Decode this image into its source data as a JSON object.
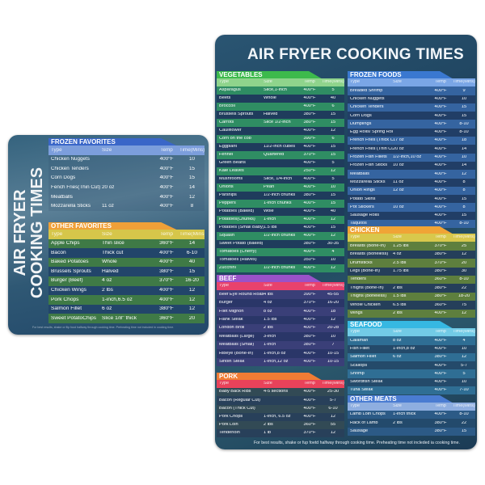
{
  "big": {
    "title": "AIR FRYER COOKING TIMES",
    "footer": "For best results, shake or fup foetd halfway through cooking time. Preheating time not incleded ia cooking time.",
    "sections": [
      {
        "key": "veg",
        "title": "VEGETABLES",
        "colors": {
          "head": "#3dba4c",
          "hrow": "#8fd48c",
          "a": "#2f8d63",
          "b": "#1f3c5c"
        },
        "columns": [
          "Type",
          "Size",
          "Temp",
          "Time(Mins)"
        ],
        "rows": [
          [
            "Asparagus",
            "Slice,1-inch",
            "400°F",
            "5"
          ],
          [
            "Beets",
            "Whole",
            "400°F",
            "40"
          ],
          [
            "Broccoli",
            "",
            "400°F",
            "6"
          ],
          [
            "Brussels Sprouts",
            "Halved",
            "380°F",
            "15"
          ],
          [
            "Carrots",
            "Slice 1/2-inch",
            "380°F",
            "15"
          ],
          [
            "Cauliflower",
            "",
            "400°F",
            "12"
          ],
          [
            "Corn on the cob",
            "",
            "390°F",
            "6"
          ],
          [
            "Eggplant",
            "11/2-inch cubes",
            "400°F",
            "15"
          ],
          [
            "Fennel",
            "Quartered",
            "370°F",
            "15"
          ],
          [
            "Green Beans",
            "",
            "400°F",
            "5"
          ],
          [
            "Kale Leaves",
            "",
            "250°F",
            "12"
          ],
          [
            "Mushrooms",
            "Slice, 1/4-inch",
            "400°F",
            "5"
          ],
          [
            "Onions",
            "Pearl",
            "400°F",
            "10"
          ],
          [
            "Parsnips",
            "1/2-inch chunks",
            "380°F",
            "15"
          ],
          [
            "Peppers",
            "1-inch chunks",
            "400°F",
            "15"
          ],
          [
            "Potatoes (Baked)",
            "Wole",
            "400°F",
            "40"
          ],
          [
            "Potatoes(Chunks)",
            "1-inch",
            "400°F",
            "12"
          ],
          [
            "Potatoes (Small Baby)",
            "1.5 lbs",
            "400°F",
            "15"
          ],
          [
            "Squash",
            "1/2-inch chunks",
            "400°F",
            "12"
          ],
          [
            "Sweet Potato (Baked)",
            "",
            "380°F",
            "30-35"
          ],
          [
            "Tomatoes (Cherry)",
            "",
            "400°F",
            "4"
          ],
          [
            "Tomatoes (Halves)",
            "",
            "350°F",
            "10"
          ],
          [
            "Zucchini",
            "1/2-inch chunks",
            "400°F",
            "12"
          ]
        ]
      },
      {
        "key": "beef",
        "title": "BEEF",
        "colors": {
          "head": "#9a52c8",
          "hrow": "#e8426c",
          "a": "#3a3f78",
          "b": "#2a3668"
        },
        "columns": [
          "Type",
          "Size",
          "Temp",
          "Time(Mins)"
        ],
        "rows": [
          [
            "Beef Eye Round Roast",
            "4 lbs",
            "390°F",
            "45-55"
          ],
          [
            "Burger",
            "4 oz",
            "370°F",
            "16-20"
          ],
          [
            "Filet Mignon",
            "8 oz",
            "400°F",
            "18"
          ],
          [
            "Flank Steak",
            "1.5 lbs",
            "400°F",
            "12"
          ],
          [
            "London Broil",
            "2 lbs",
            "400°F",
            "20-28"
          ],
          [
            "Meatballs (Large)",
            "3-inch",
            "380°F",
            "10"
          ],
          [
            "Meatballs (Small)",
            "1-inch",
            "380°F",
            "7"
          ],
          [
            "Ribeye (Bone-In)",
            "1-inch,8 oz",
            "400°F",
            "10-15"
          ],
          [
            "Sirloin Steak",
            "1-inch,12 oz",
            "400°F",
            "10-15"
          ]
        ]
      },
      {
        "key": "pork",
        "title": "PORK",
        "colors": {
          "head": "#f07c34",
          "hrow": "#e8425a",
          "a": "#324a55",
          "b": "#28405a"
        },
        "columns": [
          "Type",
          "Size",
          "Temp",
          "Time(Mins)"
        ],
        "rows": [
          [
            "Baby Back Ribs",
            "4-5 sections",
            "400°F",
            "25-30"
          ],
          [
            "Bacon (Regular Cut)",
            "",
            "400°F",
            "5-7"
          ],
          [
            "Bacon (Thick Cut)",
            "",
            "400°F",
            "6-10"
          ],
          [
            "Pork Chops",
            "1-inch, 6.5 oz",
            "400°F",
            "12"
          ],
          [
            "Pork Loin",
            "2 lbs",
            "360°F",
            "55"
          ],
          [
            "Tenderloin",
            "1 lb",
            "370°F",
            "12"
          ]
        ]
      },
      {
        "key": "frozen",
        "title": "FROZEN FOODS",
        "colors": {
          "head": "#3a78d0",
          "hrow": "#7aa6e6",
          "a": "#3564a0",
          "b": "#213e66"
        },
        "columns": [
          "Type",
          "Size",
          "Temp",
          "Time(Mins)"
        ],
        "rows": [
          [
            "Breaded Shrimp",
            "",
            "400°F",
            "9"
          ],
          [
            "Chicken Nuggets",
            "",
            "400°F",
            "10"
          ],
          [
            "Chicken Tenders",
            "",
            "400°F",
            "15"
          ],
          [
            "Corn Dogs",
            "",
            "400°F",
            "15"
          ],
          [
            "Dumplings",
            "",
            "400°F",
            "8-10"
          ],
          [
            "Egg Rolls/ Spring Rolls",
            "",
            "400°F",
            "8-10"
          ],
          [
            "French Fries (Thick Cut)",
            "17 oz",
            "400°F",
            "18"
          ],
          [
            "French Fries (Thin Cut)",
            "20 oz",
            "400°F",
            "14"
          ],
          [
            "Frozen Fish Fillets",
            "1/2-inch,10 oz",
            "400°F",
            "10"
          ],
          [
            "Frozen Fish Sticks",
            "10 oz",
            "400°F",
            "14"
          ],
          [
            "Meatballs",
            "",
            "400°F",
            "12"
          ],
          [
            "Mozzarella Sticks",
            "11 oz",
            "400°F",
            "8"
          ],
          [
            "Onion Rings",
            "12 oz",
            "400°F",
            "8"
          ],
          [
            "Potato Skins",
            "",
            "400°F",
            "15"
          ],
          [
            "Pot Stickers",
            "10 oz",
            "400°F",
            "8"
          ],
          [
            "Sausage Rolls",
            "",
            "400°F",
            "15"
          ],
          [
            "Taquitos",
            "",
            "400°F",
            "8-10"
          ]
        ]
      },
      {
        "key": "chicken",
        "title": "CHICKEN",
        "colors": {
          "head": "#f0a436",
          "hrow": "#d8c84c",
          "a": "#5e7f3e",
          "b": "#253f5a"
        },
        "columns": [
          "Type",
          "Size",
          "Temp",
          "Time(Mins)"
        ],
        "rows": [
          [
            "Breasts (Bone-In)",
            "1.25 lbs",
            "370°F",
            "25"
          ],
          [
            "Breasts (Boneless)",
            "4 oz",
            "380°F",
            "12"
          ],
          [
            "Drumsticks",
            "2.5 lbs",
            "370°F",
            "20"
          ],
          [
            "Legs (Bone-In)",
            "1.75 lbs",
            "380°F",
            "30"
          ],
          [
            "Tenders",
            "",
            "360°F",
            "8-10"
          ],
          [
            "Thighs (Bone-In)",
            "2 lbs",
            "380°F",
            "22"
          ],
          [
            "Thighs (Boneless)",
            "1.5 lbs",
            "380°F",
            "18-20"
          ],
          [
            "Whole Chicken",
            "6.5 lbs",
            "360°F",
            "75"
          ],
          [
            "Wings",
            "2 lbs",
            "400°F",
            "12"
          ]
        ]
      },
      {
        "key": "seafood",
        "title": "SEAFOOD",
        "colors": {
          "head": "#36b8e2",
          "hrow": "#72cbe6",
          "a": "#2f6e94",
          "b": "#244a6a"
        },
        "columns": [
          "Type",
          "Size",
          "Temp",
          "Time(Mins)"
        ],
        "rows": [
          [
            "Calamari",
            "8 oz",
            "400°F",
            "4"
          ],
          [
            "Fish Fillet",
            "1-inch,8 oz",
            "400°F",
            "10"
          ],
          [
            "Salmon Fillet",
            "6 oz",
            "380°F",
            "12"
          ],
          [
            "Scallops",
            "",
            "400°F",
            "5-7"
          ],
          [
            "Shrimp",
            "",
            "400°F",
            "5"
          ],
          [
            "Swordfish Steak",
            "",
            "400°F",
            "10"
          ],
          [
            "Tuna Steak",
            "",
            "400°F",
            "7-10"
          ]
        ]
      },
      {
        "key": "other",
        "title": "OTHER MEATS",
        "colors": {
          "head": "#4a7cd2",
          "hrow": "#8eaee0",
          "a": "#2c5a86",
          "b": "#234a6c"
        },
        "columns": [
          "Type",
          "Size",
          "Temp",
          "Time(Mins)"
        ],
        "rows": [
          [
            "Lamb Loin Chops",
            "1-inch thick",
            "400°F",
            "8-10"
          ],
          [
            "Rack of Lamb",
            "2 lbs",
            "380°F",
            "22"
          ],
          [
            "Sausage",
            "",
            "380°F",
            "15"
          ]
        ]
      }
    ]
  },
  "small": {
    "title_line1": "AIR FRYER",
    "title_line2": "COOKING TIMES",
    "footer": "For best results, shake or flip food halfway through cooking time. Preheating time not included in cooking time.",
    "sections": [
      {
        "key": "ffav",
        "title": "FROZEN FAVORITES",
        "colors": {
          "head": "#3a66c8",
          "hrow": "#7c9edc",
          "a": "rgba(40,70,100,.15)",
          "b": "rgba(40,70,100,.15)"
        },
        "columns": [
          "Type",
          "Size",
          "Temp",
          "Time(Mins)"
        ],
        "rows": [
          [
            "Chicken Nuggets",
            "",
            "400°F",
            "10"
          ],
          [
            "Chicken Tenders",
            "",
            "400°F",
            "15"
          ],
          [
            "Corn Dogs",
            "",
            "400°F",
            "15"
          ],
          [
            "Fench Fries(Thin Cut)",
            "20 oz",
            "400°F",
            "14"
          ],
          [
            "Meatballs",
            "",
            "400°F",
            "12"
          ],
          [
            "Mozzarella Sticks",
            "11 oz",
            "400°F",
            "8"
          ]
        ]
      },
      {
        "key": "ofav",
        "title": "OTHER FAVORITES",
        "colors": {
          "head": "#f0a038",
          "hrow": "#d6c64a",
          "a": "#3f7a46",
          "b": "#22456a"
        },
        "columns": [
          "Type",
          "Size",
          "Temp",
          "Time(Mins)"
        ],
        "rows": [
          [
            "Apple Chips",
            "Thin slice",
            "360°F",
            "14"
          ],
          [
            "Bacon",
            "Thick cut",
            "400°F",
            "6-10"
          ],
          [
            "Baked Potatoes",
            "Whole",
            "400°F",
            "40"
          ],
          [
            "Brussels Sprouts",
            "Halved",
            "380°F",
            "15"
          ],
          [
            "Burger (Beef)",
            "4 oz",
            "370°F",
            "16-20"
          ],
          [
            "Chicken Wings",
            "2 lbs",
            "400°F",
            "12"
          ],
          [
            "Pork Chops",
            "1-inch,6.5 oz",
            "400°F",
            "12"
          ],
          [
            "Salmon Fillet",
            "6 oz",
            "380°F",
            "12"
          ],
          [
            "Sweet PotatoChips",
            "Slice 1/8\"  thick",
            "360°F",
            "20"
          ]
        ]
      }
    ]
  }
}
